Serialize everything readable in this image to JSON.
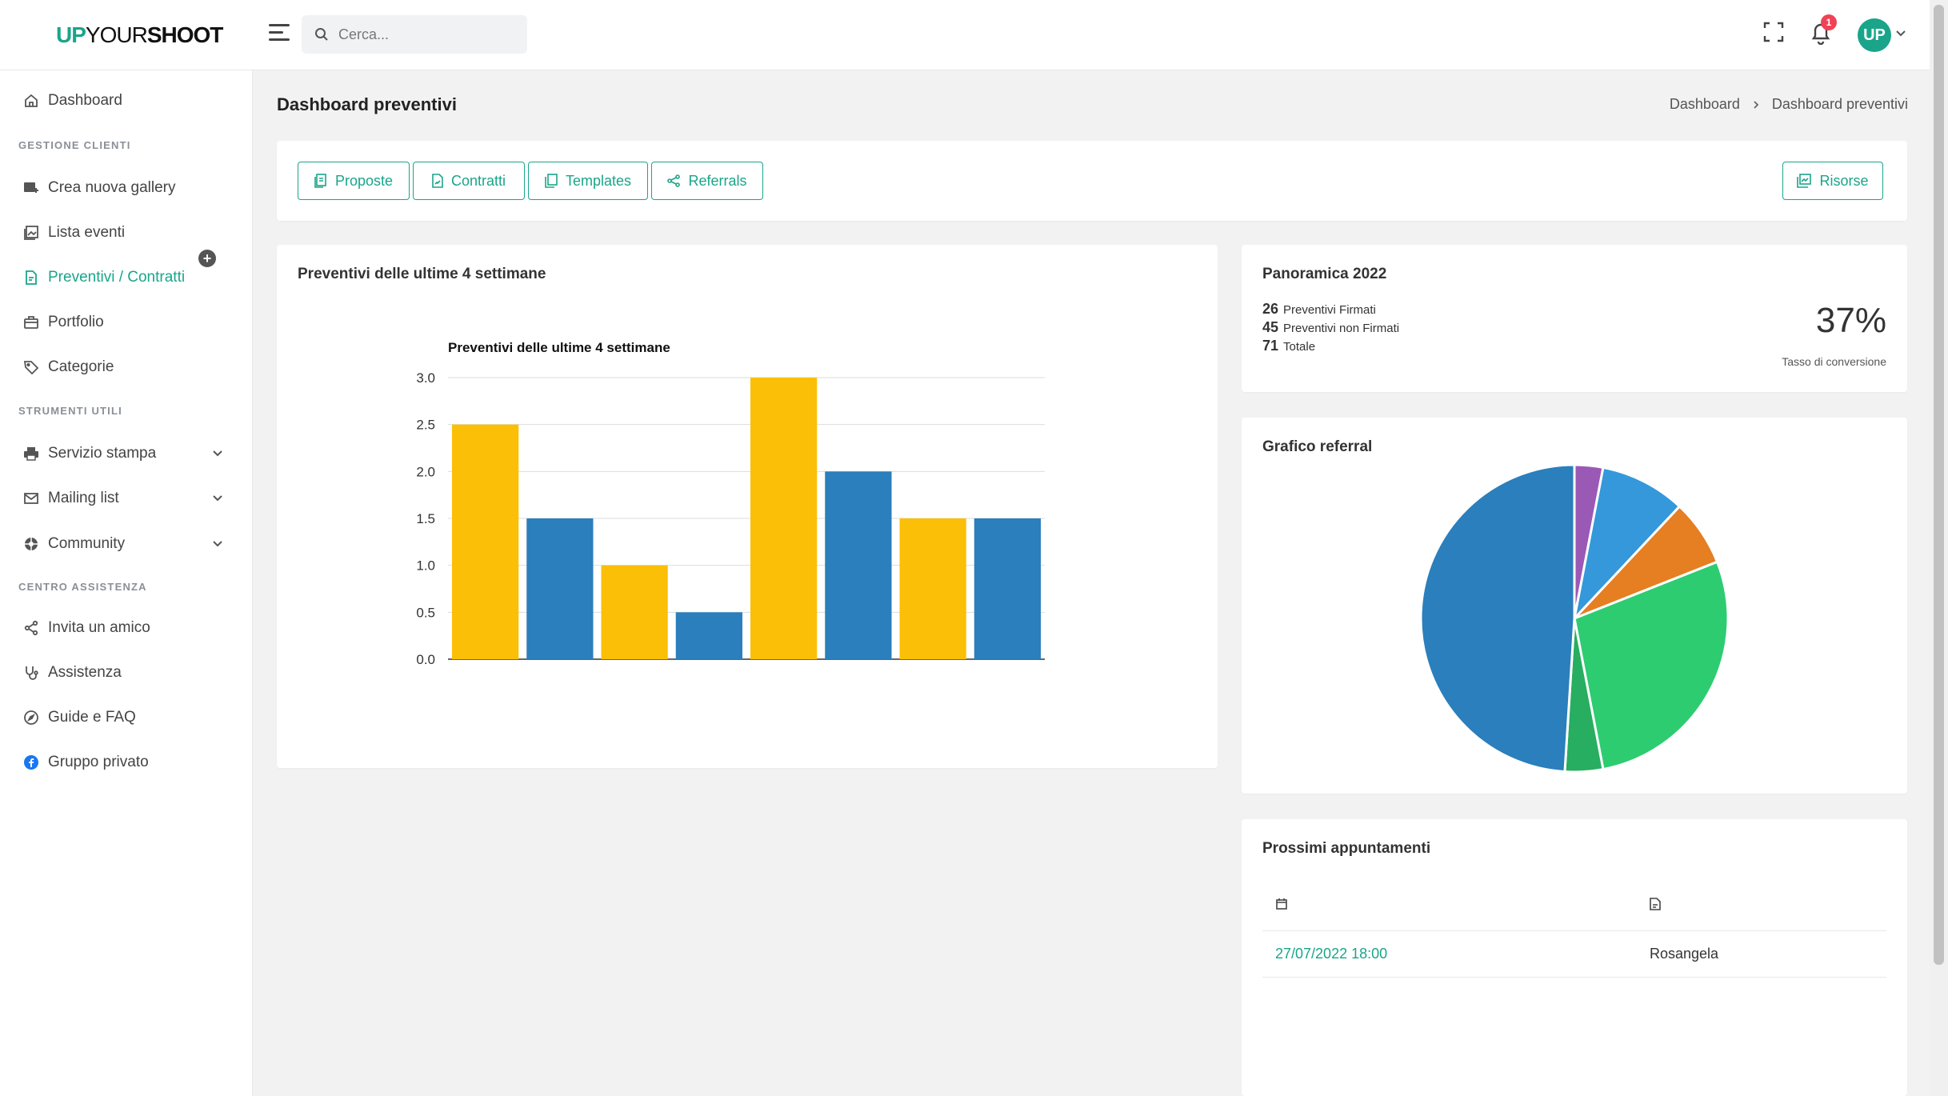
{
  "header": {
    "logo_up": "UP",
    "logo_your": "YOUR",
    "logo_shoot": "SHOOT",
    "search_placeholder": "Cerca...",
    "notification_count": "1",
    "avatar_initials": "UP"
  },
  "sidebar": {
    "dashboard": "Dashboard",
    "section_clients": "GESTIONE CLIENTI",
    "new_gallery": "Crea nuova gallery",
    "events": "Lista eventi",
    "quotes": "Preventivi / Contratti",
    "portfolio": "Portfolio",
    "categories": "Categorie",
    "section_tools": "STRUMENTI UTILI",
    "print": "Servizio stampa",
    "mailing": "Mailing list",
    "community": "Community",
    "section_support": "CENTRO ASSISTENZA",
    "invite": "Invita un amico",
    "support": "Assistenza",
    "guides": "Guide e FAQ",
    "group": "Gruppo privato"
  },
  "page": {
    "title": "Dashboard preventivi",
    "breadcrumb_home": "Dashboard",
    "breadcrumb_current": "Dashboard preventivi"
  },
  "toolbar": {
    "proposals": "Proposte",
    "contracts": "Contratti",
    "templates": "Templates",
    "referrals": "Referrals",
    "resources": "Risorse"
  },
  "chart_card": {
    "title": "Preventivi delle ultime 4 settimane"
  },
  "chart_data": [
    {
      "type": "bar",
      "title": "Preventivi delle ultime 4 settimane",
      "xlabel": "",
      "ylabel": "",
      "ylim": [
        0,
        3
      ],
      "yticks": [
        "0.0",
        "0.5",
        "1.0",
        "1.5",
        "2.0",
        "2.5",
        "3.0"
      ],
      "grid": true,
      "series": [
        {
          "color": "#fbbf07",
          "values": [
            2.5,
            1,
            3,
            1.5
          ]
        },
        {
          "color": "#2a7fbc",
          "values": [
            1.5,
            0.5,
            2,
            1.5
          ]
        }
      ]
    },
    {
      "type": "pie",
      "title": "",
      "values": [
        3,
        9,
        7,
        28,
        4,
        49
      ],
      "colors": [
        "#9b59b6",
        "#3498db",
        "#e67e22",
        "#2ecc71",
        "#27ae60",
        "#2a7fbc"
      ]
    }
  ],
  "overview": {
    "title": "Panoramica 2022",
    "signed_count": "26",
    "signed_label": "Preventivi Firmati",
    "unsigned_count": "45",
    "unsigned_label": "Preventivi non Firmati",
    "total_count": "71",
    "total_label": "Totale",
    "conversion": "37%",
    "conversion_label": "Tasso di conversione"
  },
  "referral": {
    "title": "Grafico referral"
  },
  "appointments": {
    "title": "Prossimi appuntamenti",
    "rows": [
      {
        "date": "27/07/2022 18:00",
        "name": "Rosangela"
      }
    ]
  }
}
